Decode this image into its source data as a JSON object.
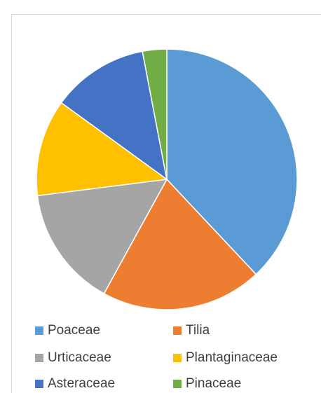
{
  "chart_data": {
    "type": "pie",
    "categories": [
      "Poaceae",
      "Tilia",
      "Urticaceae",
      "Plantaginaceae",
      "Asteraceae",
      "Pinaceae"
    ],
    "values": [
      38,
      20,
      15,
      12,
      12,
      3
    ],
    "colors": [
      "#5b9bd5",
      "#ed7d31",
      "#a5a5a5",
      "#ffc000",
      "#4472c4",
      "#70ad47"
    ],
    "legend": "bottom"
  }
}
